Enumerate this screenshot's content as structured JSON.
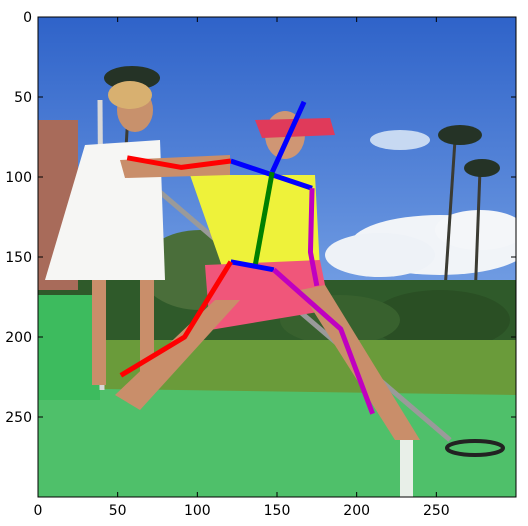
{
  "chart_data": {
    "type": "scatter",
    "title": "",
    "xlabel": "",
    "ylabel": "",
    "xlim": [
      0,
      300
    ],
    "ylim": [
      300,
      0
    ],
    "grid": false,
    "x_ticks": [
      "0",
      "50",
      "100",
      "150",
      "200",
      "250"
    ],
    "y_ticks": [
      "0",
      "50",
      "100",
      "150",
      "200",
      "250"
    ],
    "x_tick_values": [
      0,
      50,
      100,
      150,
      200,
      250
    ],
    "y_tick_values": [
      0,
      50,
      100,
      150,
      200,
      250
    ],
    "background": "photo of a person doing a lunge pose on a green putting surface, with a woman holding a pole behind",
    "skeleton": [
      {
        "part": "head",
        "color": "#0000ff",
        "points": [
          [
            167,
            53
          ],
          [
            147,
            97
          ]
        ]
      },
      {
        "part": "shoulders",
        "color": "#0000ff",
        "points": [
          [
            121,
            90
          ],
          [
            172,
            107
          ]
        ]
      },
      {
        "part": "torso",
        "color": "#008000",
        "points": [
          [
            147,
            97
          ],
          [
            136,
            157
          ]
        ]
      },
      {
        "part": "hips",
        "color": "#0000ff",
        "points": [
          [
            121,
            153
          ],
          [
            148,
            158
          ]
        ]
      },
      {
        "part": "right-arm",
        "color": "#ff0000",
        "points": [
          [
            56,
            88
          ],
          [
            90,
            94
          ],
          [
            121,
            90
          ]
        ]
      },
      {
        "part": "left-arm",
        "color": "#c000c0",
        "points": [
          [
            172,
            107
          ],
          [
            171,
            147
          ],
          [
            175,
            168
          ]
        ]
      },
      {
        "part": "right-leg",
        "color": "#ff0000",
        "points": [
          [
            121,
            153
          ],
          [
            92,
            200
          ],
          [
            52,
            224
          ]
        ]
      },
      {
        "part": "left-leg",
        "color": "#c000c0",
        "points": [
          [
            148,
            158
          ],
          [
            190,
            195
          ],
          [
            210,
            248
          ]
        ]
      }
    ]
  }
}
